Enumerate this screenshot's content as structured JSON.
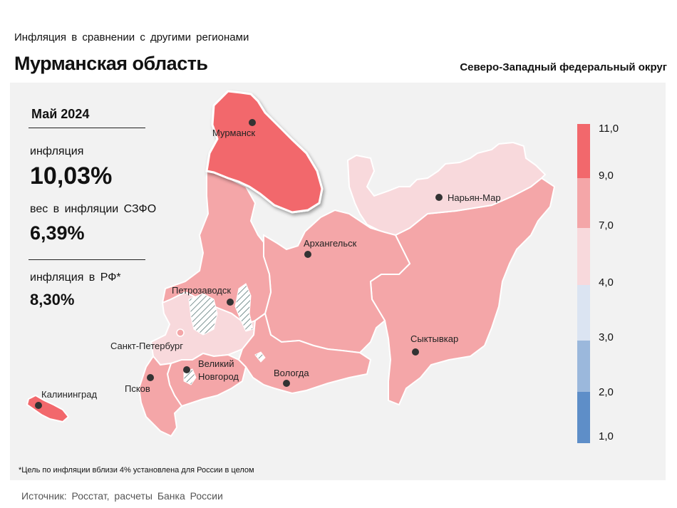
{
  "header": {
    "subtitle": "Инфляция в сравнении с другими регионами",
    "title": "Мурманская область",
    "district": "Северо-Западный федеральный округ"
  },
  "stats": {
    "month": "Май 2024",
    "inflation_label": "инфляция",
    "inflation_value": "10,03%",
    "weight_label": "вес в инфляции СЗФО",
    "weight_value": "6,39%",
    "rf_label": "инфляция в РФ*",
    "rf_value": "8,30%"
  },
  "cities": {
    "murmansk": "Мурманск",
    "naryan_mar": "Нарьян-Мар",
    "arkhangelsk": "Архангельск",
    "petrozavodsk": "Петрозаводск",
    "spb": "Санкт-Петербург",
    "syktyvkar": "Сыктывкар",
    "kaliningrad": "Калининград",
    "novgorod_1": "Великий",
    "novgorod_2": "Новгород",
    "pskov": "Псков",
    "vologda": "Вологда"
  },
  "legend": {
    "ticks": [
      "11,0",
      "9,0",
      "7,0",
      "4,0",
      "3,0",
      "2,0",
      "1,0"
    ],
    "colors": [
      "#f2686c",
      "#f4a6a8",
      "#f8d9dc",
      "#dbe4f2",
      "#9bb8dc",
      "#5e8ec8"
    ]
  },
  "colors": {
    "high": "#f2686c",
    "mid": "#f4a6a8",
    "low": "#f8d9dc",
    "panel": "#f2f2f2"
  },
  "footnote": "*Цель по инфляции вблизи 4% установлена для России в целом",
  "source": "Источник: Росстат, расчеты Банка России"
}
